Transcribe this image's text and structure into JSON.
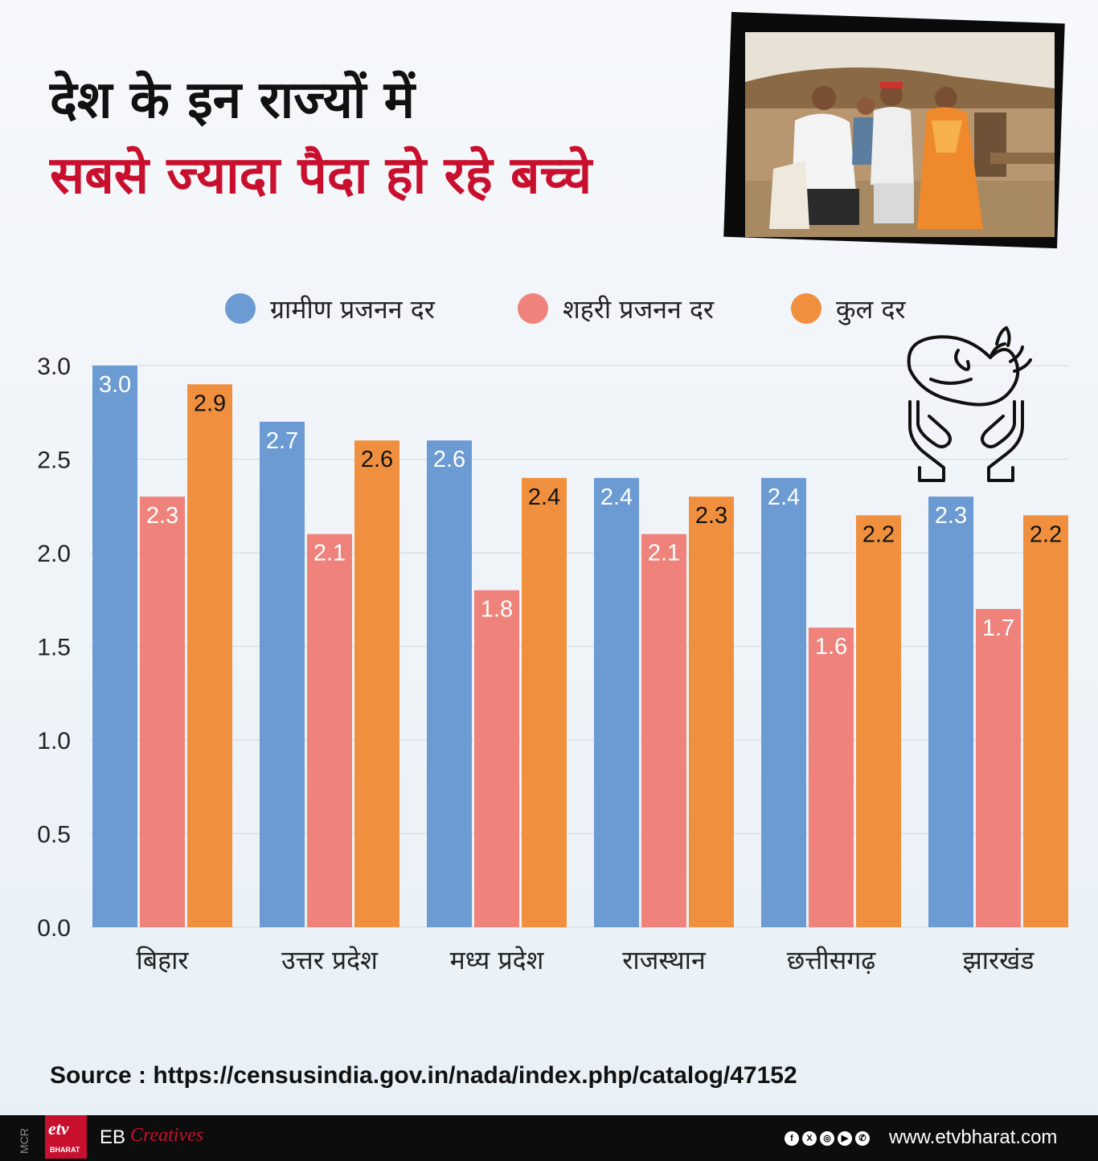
{
  "header": {
    "line1": "देश के इन राज्यों में",
    "line2": "सबसे ज्यादा पैदा हो रहे बच्चे"
  },
  "legend": [
    {
      "label": "ग्रामीण प्रजनन दर",
      "color": "#6b9bd2"
    },
    {
      "label": "शहरी प्रजनन दर",
      "color": "#ef837b"
    },
    {
      "label": "कुल दर",
      "color": "#f0903e"
    }
  ],
  "chart_data": {
    "type": "bar",
    "categories": [
      "बिहार",
      "उत्तर प्रदेश",
      "मध्य प्रदेश",
      "राजस्थान",
      "छत्तीसगढ़",
      "झारखंड"
    ],
    "series": [
      {
        "name": "ग्रामीण प्रजनन दर",
        "values": [
          3.0,
          2.7,
          2.6,
          2.4,
          2.4,
          2.3
        ]
      },
      {
        "name": "शहरी प्रजनन दर",
        "values": [
          2.3,
          2.1,
          1.8,
          2.1,
          1.6,
          1.7
        ]
      },
      {
        "name": "कुल दर",
        "values": [
          2.9,
          2.6,
          2.4,
          2.3,
          2.2,
          2.2
        ]
      }
    ],
    "colors": [
      "#6b9bd2",
      "#ef837b",
      "#f0903e"
    ],
    "label_colors": [
      "#ffffff",
      "#ffffff",
      "#111111"
    ],
    "yticks": [
      "0.0",
      "0.5",
      "1.0",
      "1.5",
      "2.0",
      "2.5",
      "3.0"
    ],
    "ylim": [
      0,
      3.0
    ],
    "grid": true,
    "legend": "top",
    "title": "",
    "xlabel": "",
    "ylabel": ""
  },
  "source": "Source : https://censusindia.gov.in/nada/index.php/catalog/47152",
  "footer": {
    "mcr": "MCR",
    "logo_text": "etv",
    "logo_sub": "BHARAT",
    "eb": "EB",
    "creatives": "Creatives",
    "website": "www.etvbharat.com",
    "social_icons": [
      "facebook-icon",
      "x-icon",
      "instagram-icon",
      "youtube-icon",
      "whatsapp-icon"
    ]
  }
}
